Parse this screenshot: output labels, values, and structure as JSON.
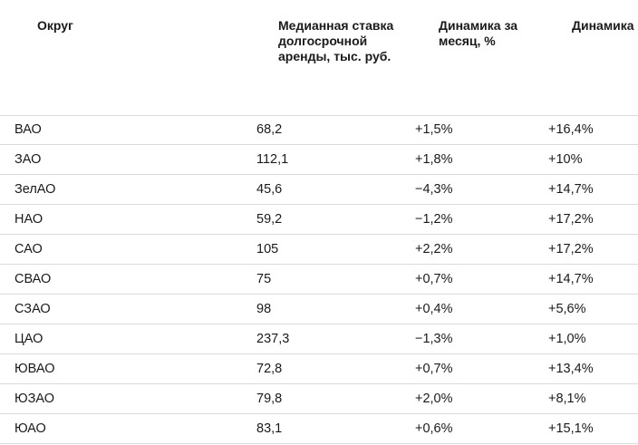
{
  "table": {
    "headers": {
      "okrug": "Округ",
      "rate": "Медианная ставка долгосрочной аренды, тыс. руб.",
      "month": "Динамика за месяц, %",
      "year": "Динамика за год, %"
    },
    "rows": [
      {
        "okrug": "ВАО",
        "rate": "68,2",
        "month": "+1,5%",
        "year": "+16,4%"
      },
      {
        "okrug": "ЗАО",
        "rate": "112,1",
        "month": "+1,8%",
        "year": "+10%"
      },
      {
        "okrug": "ЗелАО",
        "rate": "45,6",
        "month": "−4,3%",
        "year": "+14,7%"
      },
      {
        "okrug": "НАО",
        "rate": "59,2",
        "month": "−1,2%",
        "year": "+17,2%"
      },
      {
        "okrug": "САО",
        "rate": "105",
        "month": "+2,2%",
        "year": "+17,2%"
      },
      {
        "okrug": "СВАО",
        "rate": "75",
        "month": "+0,7%",
        "year": "+14,7%"
      },
      {
        "okrug": "СЗАО",
        "rate": "98",
        "month": "+0,4%",
        "year": "+5,6%"
      },
      {
        "okrug": "ЦАО",
        "rate": "237,3",
        "month": "−1,3%",
        "year": "+1,0%"
      },
      {
        "okrug": "ЮВАО",
        "rate": "72,8",
        "month": "+0,7%",
        "year": "+13,4%"
      },
      {
        "okrug": "ЮЗАО",
        "rate": "79,8",
        "month": "+2,0%",
        "year": "+8,1%"
      },
      {
        "okrug": "ЮАО",
        "rate": "83,1",
        "month": "+0,6%",
        "year": "+15,1%"
      }
    ]
  }
}
